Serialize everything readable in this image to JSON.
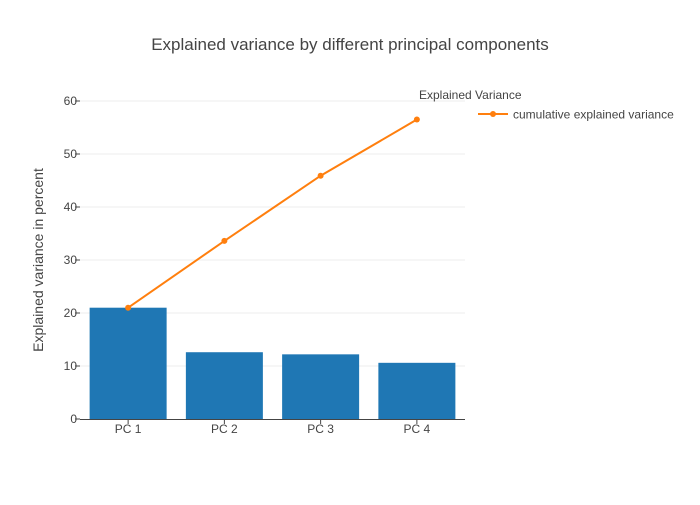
{
  "chart_data": {
    "type": "bar",
    "title": "Explained variance by different principal components",
    "xlabel": "",
    "ylabel": "Explained variance in percent",
    "categories": [
      "PC 1",
      "PC 2",
      "PC 3",
      "PC 4"
    ],
    "ylim": [
      0,
      60
    ],
    "yticks": [
      0,
      10,
      20,
      30,
      40,
      50,
      60
    ],
    "grid": true,
    "series": [
      {
        "type": "bar",
        "values": [
          21.0,
          12.6,
          12.2,
          10.6
        ],
        "color": "#1f77b4"
      },
      {
        "type": "line",
        "name": "cumulative explained variance",
        "values": [
          21.0,
          33.6,
          45.9,
          56.5
        ],
        "color": "#ff7f0e"
      }
    ],
    "legend": {
      "title": "Explained Variance",
      "placement": "top-right"
    }
  }
}
